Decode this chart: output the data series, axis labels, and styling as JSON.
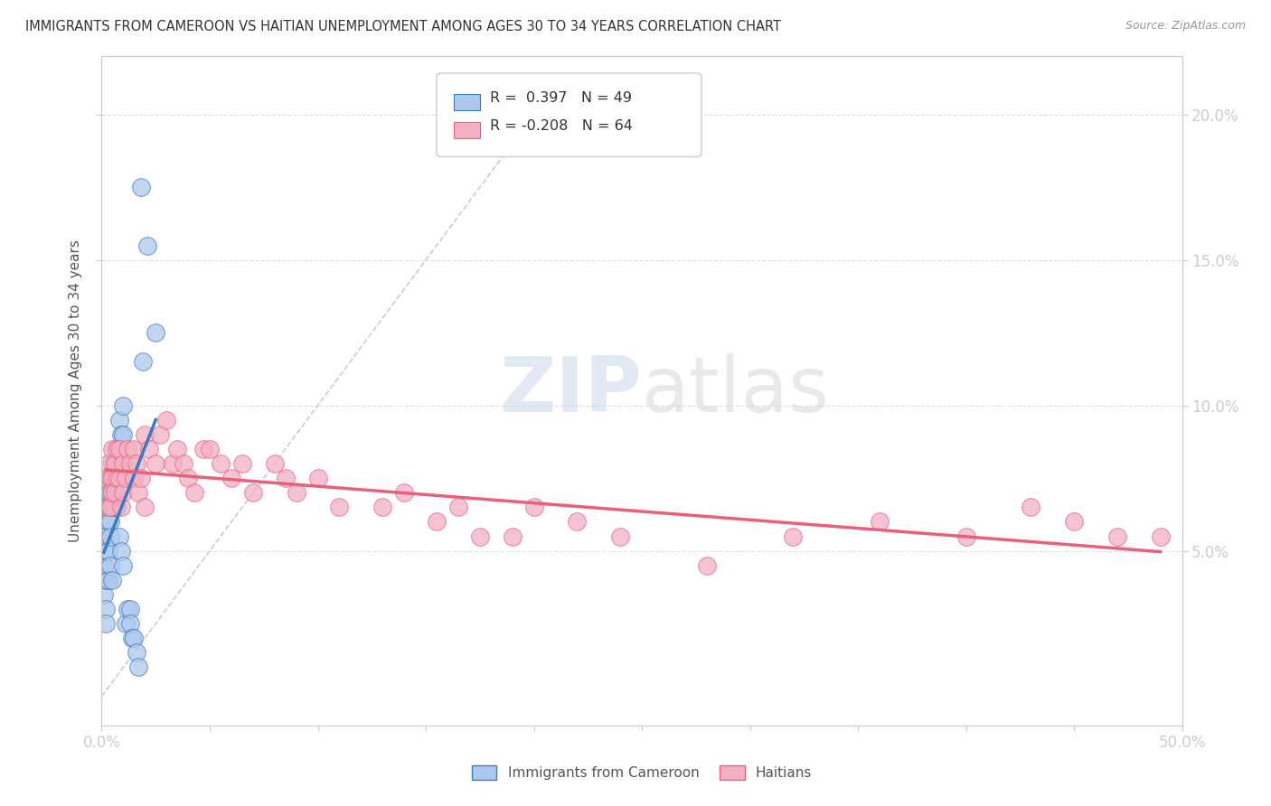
{
  "title": "IMMIGRANTS FROM CAMEROON VS HAITIAN UNEMPLOYMENT AMONG AGES 30 TO 34 YEARS CORRELATION CHART",
  "source": "Source: ZipAtlas.com",
  "ylabel": "Unemployment Among Ages 30 to 34 years",
  "xlim": [
    0.0,
    0.5
  ],
  "ylim": [
    -0.01,
    0.22
  ],
  "cameroon_R": 0.397,
  "cameroon_N": 49,
  "haitian_R": -0.208,
  "haitian_N": 64,
  "cameroon_color": "#adc8ed",
  "haitian_color": "#f4afc3",
  "cameroon_line_color": "#3a7bbf",
  "haitian_line_color": "#e8607a",
  "ref_line_color": "#c0c8d8",
  "axis_color": "#cccccc",
  "tick_color": "#5599cc",
  "cameroon_x": [
    0.001,
    0.001,
    0.001,
    0.002,
    0.002,
    0.002,
    0.002,
    0.002,
    0.002,
    0.003,
    0.003,
    0.003,
    0.003,
    0.003,
    0.003,
    0.004,
    0.004,
    0.004,
    0.004,
    0.004,
    0.005,
    0.005,
    0.005,
    0.005,
    0.006,
    0.006,
    0.006,
    0.007,
    0.007,
    0.007,
    0.008,
    0.008,
    0.009,
    0.009,
    0.01,
    0.01,
    0.01,
    0.011,
    0.012,
    0.013,
    0.013,
    0.014,
    0.015,
    0.016,
    0.017,
    0.018,
    0.019,
    0.021,
    0.025
  ],
  "cameroon_y": [
    0.055,
    0.045,
    0.035,
    0.065,
    0.055,
    0.05,
    0.04,
    0.03,
    0.025,
    0.075,
    0.07,
    0.065,
    0.06,
    0.05,
    0.04,
    0.07,
    0.065,
    0.06,
    0.055,
    0.045,
    0.08,
    0.075,
    0.065,
    0.04,
    0.08,
    0.075,
    0.065,
    0.085,
    0.08,
    0.065,
    0.095,
    0.055,
    0.09,
    0.05,
    0.1,
    0.09,
    0.045,
    0.025,
    0.03,
    0.03,
    0.025,
    0.02,
    0.02,
    0.015,
    0.01,
    0.175,
    0.115,
    0.155,
    0.125
  ],
  "haitian_x": [
    0.002,
    0.003,
    0.003,
    0.004,
    0.004,
    0.005,
    0.005,
    0.005,
    0.006,
    0.006,
    0.007,
    0.007,
    0.008,
    0.008,
    0.009,
    0.01,
    0.01,
    0.011,
    0.012,
    0.013,
    0.015,
    0.015,
    0.016,
    0.017,
    0.018,
    0.02,
    0.02,
    0.022,
    0.025,
    0.027,
    0.03,
    0.033,
    0.035,
    0.038,
    0.04,
    0.043,
    0.047,
    0.05,
    0.055,
    0.06,
    0.065,
    0.07,
    0.08,
    0.085,
    0.09,
    0.1,
    0.11,
    0.13,
    0.14,
    0.155,
    0.165,
    0.175,
    0.19,
    0.2,
    0.22,
    0.24,
    0.28,
    0.32,
    0.36,
    0.4,
    0.43,
    0.45,
    0.47,
    0.49
  ],
  "haitian_y": [
    0.075,
    0.08,
    0.065,
    0.075,
    0.065,
    0.085,
    0.075,
    0.07,
    0.08,
    0.07,
    0.085,
    0.075,
    0.085,
    0.075,
    0.065,
    0.08,
    0.07,
    0.075,
    0.085,
    0.08,
    0.085,
    0.075,
    0.08,
    0.07,
    0.075,
    0.09,
    0.065,
    0.085,
    0.08,
    0.09,
    0.095,
    0.08,
    0.085,
    0.08,
    0.075,
    0.07,
    0.085,
    0.085,
    0.08,
    0.075,
    0.08,
    0.07,
    0.08,
    0.075,
    0.07,
    0.075,
    0.065,
    0.065,
    0.07,
    0.06,
    0.065,
    0.055,
    0.055,
    0.065,
    0.06,
    0.055,
    0.045,
    0.055,
    0.06,
    0.055,
    0.065,
    0.06,
    0.055,
    0.055
  ]
}
